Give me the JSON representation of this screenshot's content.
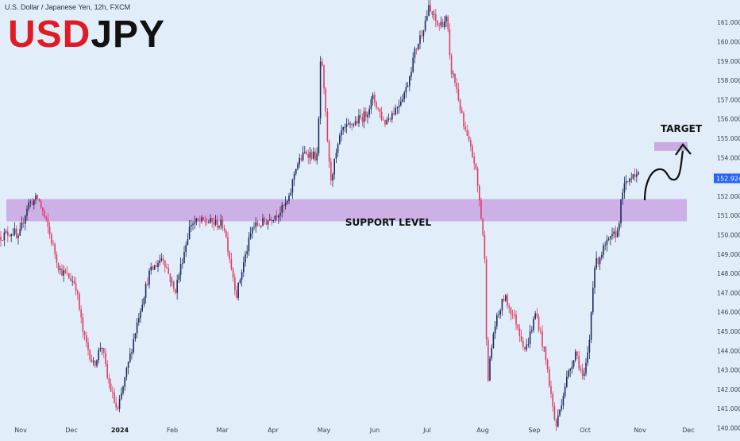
{
  "header": {
    "symbol_info": "U.S. Dollar / Japanese Yen, 12h, FXCM",
    "title_part1": "USD",
    "title_part2": "JPY"
  },
  "colors": {
    "background": "#e1eefa",
    "up_candle": "#1d2a5c",
    "down_candle": "#e23b5f",
    "zone": "#cba9e2",
    "title_red": "#e01b24",
    "price_badge": "#2962ff"
  },
  "chart_data": {
    "type": "candlestick",
    "interval": "12h",
    "instrument": "USDJPY",
    "current_price": "152.924",
    "ylim": [
      139.5,
      161.8
    ],
    "y_ticks": [
      "140.000",
      "141.000",
      "142.000",
      "143.000",
      "144.000",
      "145.000",
      "146.000",
      "147.000",
      "148.000",
      "149.000",
      "150.000",
      "151.000",
      "152.000",
      "153.000",
      "154.000",
      "155.000",
      "156.000",
      "157.000",
      "158.000",
      "159.000",
      "160.000",
      "161.000"
    ],
    "x_ticks": [
      "Nov",
      "Dec",
      "2024",
      "Feb",
      "Mar",
      "Apr",
      "May",
      "Jun",
      "Jul",
      "Aug",
      "Sep",
      "Oct",
      "Nov",
      "Dec"
    ],
    "x_tick_bold": "2024",
    "annotations": {
      "support_label": "SUPPORT LEVEL",
      "target_label": "TARGET"
    },
    "zones": {
      "support": [
        150.7,
        151.85
      ],
      "target": [
        154.35,
        154.8
      ]
    },
    "price_path": [
      [
        0,
        149.9
      ],
      [
        18,
        150.2
      ],
      [
        22,
        149.6
      ],
      [
        35,
        151.6
      ],
      [
        48,
        151.9
      ],
      [
        60,
        150.4
      ],
      [
        75,
        148.2
      ],
      [
        95,
        147.5
      ],
      [
        105,
        144.8
      ],
      [
        118,
        143.2
      ],
      [
        128,
        144.4
      ],
      [
        135,
        142.6
      ],
      [
        148,
        140.8
      ],
      [
        162,
        143.4
      ],
      [
        175,
        145.9
      ],
      [
        188,
        148.0
      ],
      [
        205,
        148.9
      ],
      [
        220,
        147.0
      ],
      [
        240,
        150.6
      ],
      [
        258,
        150.7
      ],
      [
        282,
        150.5
      ],
      [
        292,
        148.2
      ],
      [
        298,
        146.9
      ],
      [
        306,
        148.4
      ],
      [
        318,
        150.4
      ],
      [
        335,
        150.7
      ],
      [
        355,
        151.3
      ],
      [
        364,
        151.8
      ],
      [
        372,
        153.5
      ],
      [
        385,
        154.3
      ],
      [
        400,
        154.0
      ],
      [
        404,
        159.5
      ],
      [
        410,
        156.3
      ],
      [
        416,
        152.8
      ],
      [
        430,
        155.3
      ],
      [
        446,
        155.8
      ],
      [
        460,
        156.2
      ],
      [
        470,
        157.1
      ],
      [
        484,
        155.8
      ],
      [
        498,
        156.5
      ],
      [
        512,
        157.6
      ],
      [
        522,
        159.4
      ],
      [
        532,
        160.6
      ],
      [
        540,
        161.7
      ],
      [
        552,
        160.8
      ],
      [
        563,
        161.2
      ],
      [
        567,
        158.7
      ],
      [
        574,
        157.8
      ],
      [
        584,
        155.6
      ],
      [
        598,
        153.7
      ],
      [
        604,
        151.7
      ],
      [
        610,
        149.3
      ],
      [
        614,
        142.4
      ],
      [
        622,
        145.1
      ],
      [
        635,
        146.8
      ],
      [
        650,
        145.5
      ],
      [
        662,
        144.0
      ],
      [
        675,
        146.0
      ],
      [
        688,
        143.4
      ],
      [
        700,
        140.0
      ],
      [
        712,
        142.3
      ],
      [
        725,
        144.0
      ],
      [
        735,
        142.4
      ],
      [
        742,
        144.3
      ],
      [
        748,
        148.3
      ],
      [
        762,
        149.4
      ],
      [
        778,
        150.2
      ],
      [
        784,
        152.3
      ],
      [
        790,
        152.7
      ],
      [
        798,
        153.3
      ],
      [
        806,
        152.9
      ]
    ]
  }
}
